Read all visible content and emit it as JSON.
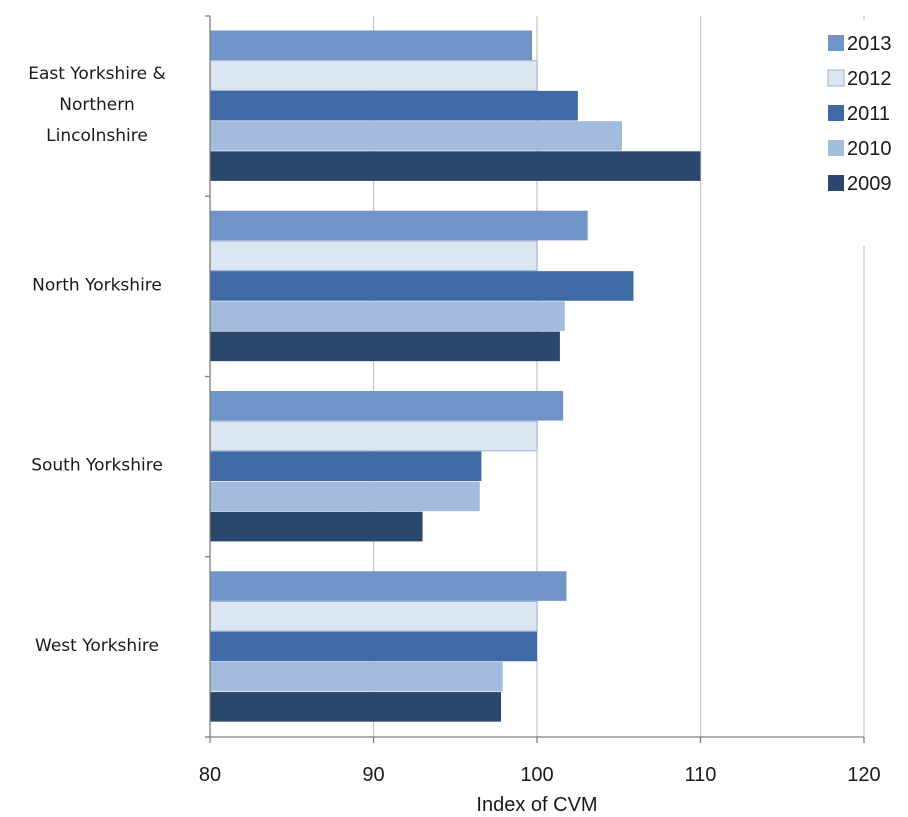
{
  "chart_data": {
    "type": "bar",
    "orientation": "horizontal",
    "categories": [
      "East Yorkshire & Northern Lincolnshire",
      "North Yorkshire",
      "South Yorkshire",
      "West Yorkshire"
    ],
    "category_label_lines": [
      [
        "East Yorkshire &",
        "Northern",
        "Lincolnshire"
      ],
      [
        "North Yorkshire"
      ],
      [
        "South Yorkshire"
      ],
      [
        "West Yorkshire"
      ]
    ],
    "series": [
      {
        "name": "2013",
        "color": "#7094c7",
        "values": [
          99.7,
          103.1,
          101.6,
          101.8
        ]
      },
      {
        "name": "2012",
        "color": "#dce6f2",
        "values": [
          100.0,
          100.0,
          100.0,
          100.0
        ]
      },
      {
        "name": "2011",
        "color": "#3e6ba5",
        "values": [
          102.5,
          105.9,
          96.6,
          100.0
        ]
      },
      {
        "name": "2010",
        "color": "#a3bbdc",
        "values": [
          105.2,
          101.7,
          96.5,
          97.9
        ]
      },
      {
        "name": "2009",
        "color": "#2c476e",
        "values": [
          110.0,
          101.4,
          93.0,
          97.8
        ]
      }
    ],
    "xlabel": "Index of CVM",
    "ylabel": "",
    "title": "",
    "xlim": [
      80,
      120
    ],
    "xticks": [
      80,
      90,
      100,
      110,
      120
    ],
    "grid": "vertical",
    "legend_position": "top-right"
  }
}
